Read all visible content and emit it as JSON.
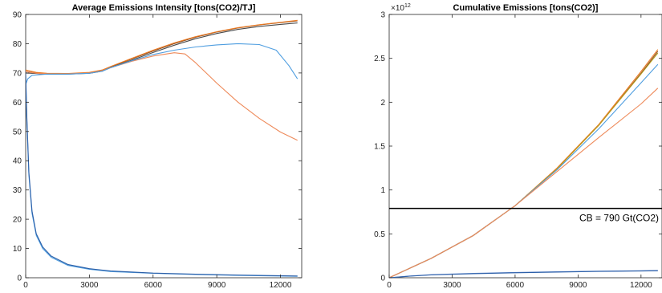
{
  "chart_data": [
    {
      "type": "line",
      "title": "Average Emissions Intensity [tons(CO2)/TJ]",
      "xlabel": "",
      "ylabel": "",
      "xlim": [
        0,
        13000
      ],
      "ylim": [
        0,
        90
      ],
      "xticks": [
        0,
        3000,
        6000,
        9000,
        12000
      ],
      "yticks": [
        0,
        10,
        20,
        30,
        40,
        50,
        60,
        70,
        80,
        90
      ],
      "grid": false,
      "series": [
        {
          "color": "#8c4a1c",
          "x": [
            0,
            500,
            1000,
            2000,
            3000,
            3600,
            4000,
            5000,
            6000,
            7000,
            8000,
            9000,
            10000,
            11000,
            12000,
            12800
          ],
          "y": [
            70.5,
            70.0,
            69.8,
            69.7,
            70.0,
            70.8,
            72.0,
            74.8,
            77.5,
            80.0,
            82.2,
            84.0,
            85.4,
            86.4,
            87.2,
            87.8
          ]
        },
        {
          "color": "#ec7b23",
          "x": [
            0,
            500,
            1000,
            2000,
            3000,
            3600,
            4000,
            5000,
            6000,
            7000,
            8000,
            9000,
            10000,
            11000,
            12000,
            12800
          ],
          "y": [
            71.0,
            70.2,
            69.9,
            69.8,
            70.2,
            71.0,
            72.2,
            75.0,
            77.8,
            80.3,
            82.4,
            84.1,
            85.5,
            86.5,
            87.3,
            88.0
          ]
        },
        {
          "color": "#4a4a4a",
          "x": [
            0,
            500,
            1000,
            2000,
            3000,
            3600,
            4000,
            5000,
            6000,
            7000,
            8000,
            9000,
            10000,
            11000,
            12000,
            12800
          ],
          "y": [
            70.0,
            69.8,
            69.6,
            69.6,
            69.9,
            70.6,
            71.8,
            74.4,
            77.0,
            79.5,
            81.7,
            83.5,
            84.9,
            85.9,
            86.6,
            87.1
          ]
        },
        {
          "color": "#ee8a5a",
          "x": [
            0,
            500,
            1000,
            2000,
            3000,
            3600,
            4000,
            5000,
            6000,
            7000,
            7500,
            8000,
            9000,
            10000,
            11000,
            12000,
            12800
          ],
          "y": [
            70.5,
            69.9,
            69.7,
            69.7,
            70.0,
            70.7,
            71.8,
            74.0,
            75.8,
            76.9,
            76.5,
            73.5,
            66.5,
            60.0,
            54.5,
            49.8,
            47.0
          ]
        },
        {
          "color": "#4f9ee0",
          "x": [
            0,
            100,
            300,
            1000,
            2000,
            3000,
            3600,
            4000,
            5000,
            6000,
            7000,
            8000,
            9000,
            10000,
            11000,
            11800,
            12400,
            12800
          ],
          "y": [
            66.0,
            68.0,
            69.2,
            69.6,
            69.6,
            69.9,
            70.6,
            71.8,
            74.2,
            76.3,
            77.8,
            78.9,
            79.6,
            80.0,
            79.7,
            77.8,
            72.5,
            68.0
          ]
        },
        {
          "color": "#4f9ee0",
          "x": [
            0,
            50,
            150,
            300,
            500,
            800,
            1200,
            2000,
            3000,
            4000,
            6000,
            8000,
            10000,
            12800
          ],
          "y": [
            69.0,
            55.0,
            35.0,
            22.0,
            14.5,
            10.0,
            7.0,
            4.2,
            2.9,
            2.1,
            1.5,
            1.1,
            0.8,
            0.5
          ]
        },
        {
          "color": "#2c5fa8",
          "x": [
            0,
            50,
            150,
            300,
            500,
            800,
            1200,
            2000,
            3000,
            4000,
            6000,
            8000,
            10000,
            12800
          ],
          "y": [
            70.0,
            56.0,
            36.0,
            22.8,
            15.0,
            10.5,
            7.4,
            4.5,
            3.1,
            2.3,
            1.6,
            1.2,
            0.9,
            0.6
          ]
        }
      ]
    },
    {
      "type": "line",
      "title": "Cumulative Emissions [tons(CO2)]",
      "xlabel": "",
      "ylabel": "",
      "exponent_label": "×10",
      "exponent_power": "12",
      "xlim": [
        0,
        13000
      ],
      "ylim": [
        0,
        3
      ],
      "xticks": [
        0,
        3000,
        6000,
        9000,
        12000
      ],
      "yticks": [
        0,
        0.5,
        1,
        1.5,
        2,
        2.5,
        3
      ],
      "ytick_labels": [
        "0",
        "0.5",
        "1",
        "1.5",
        "2",
        "2.5",
        "3"
      ],
      "grid": false,
      "annotation": "CB = 790 Gt(CO2)",
      "reference_line": {
        "y": 0.79,
        "color": "#000000"
      },
      "series": [
        {
          "color": "#8c4a1c",
          "x": [
            0,
            2000,
            4000,
            6000,
            8000,
            10000,
            12000,
            12800
          ],
          "y": [
            0,
            0.22,
            0.48,
            0.82,
            1.24,
            1.74,
            2.33,
            2.58
          ]
        },
        {
          "color": "#ec7b23",
          "x": [
            0,
            2000,
            4000,
            6000,
            8000,
            10000,
            12000,
            12800
          ],
          "y": [
            0,
            0.22,
            0.48,
            0.82,
            1.25,
            1.75,
            2.35,
            2.6
          ]
        },
        {
          "color": "#b8a020",
          "x": [
            0,
            2000,
            4000,
            6000,
            8000,
            10000,
            12000,
            12800
          ],
          "y": [
            0,
            0.22,
            0.48,
            0.82,
            1.24,
            1.74,
            2.32,
            2.56
          ]
        },
        {
          "color": "#4f9ee0",
          "x": [
            0,
            2000,
            4000,
            6000,
            8000,
            10000,
            12000,
            12800
          ],
          "y": [
            0,
            0.22,
            0.48,
            0.82,
            1.23,
            1.7,
            2.22,
            2.43
          ]
        },
        {
          "color": "#ee8a5a",
          "x": [
            0,
            2000,
            4000,
            6000,
            8000,
            10000,
            12000,
            12800
          ],
          "y": [
            0,
            0.22,
            0.48,
            0.82,
            1.21,
            1.6,
            1.98,
            2.16
          ]
        },
        {
          "color": "#6b8fd0",
          "x": [
            0,
            1000,
            2000,
            4000,
            6000,
            8000,
            10000,
            12000,
            12800
          ],
          "y": [
            0,
            0.02,
            0.035,
            0.05,
            0.06,
            0.068,
            0.075,
            0.08,
            0.083
          ]
        },
        {
          "color": "#2c5fa8",
          "x": [
            0,
            1000,
            2000,
            4000,
            6000,
            8000,
            10000,
            12000,
            12800
          ],
          "y": [
            0,
            0.018,
            0.032,
            0.047,
            0.057,
            0.065,
            0.072,
            0.077,
            0.08
          ]
        }
      ]
    }
  ]
}
